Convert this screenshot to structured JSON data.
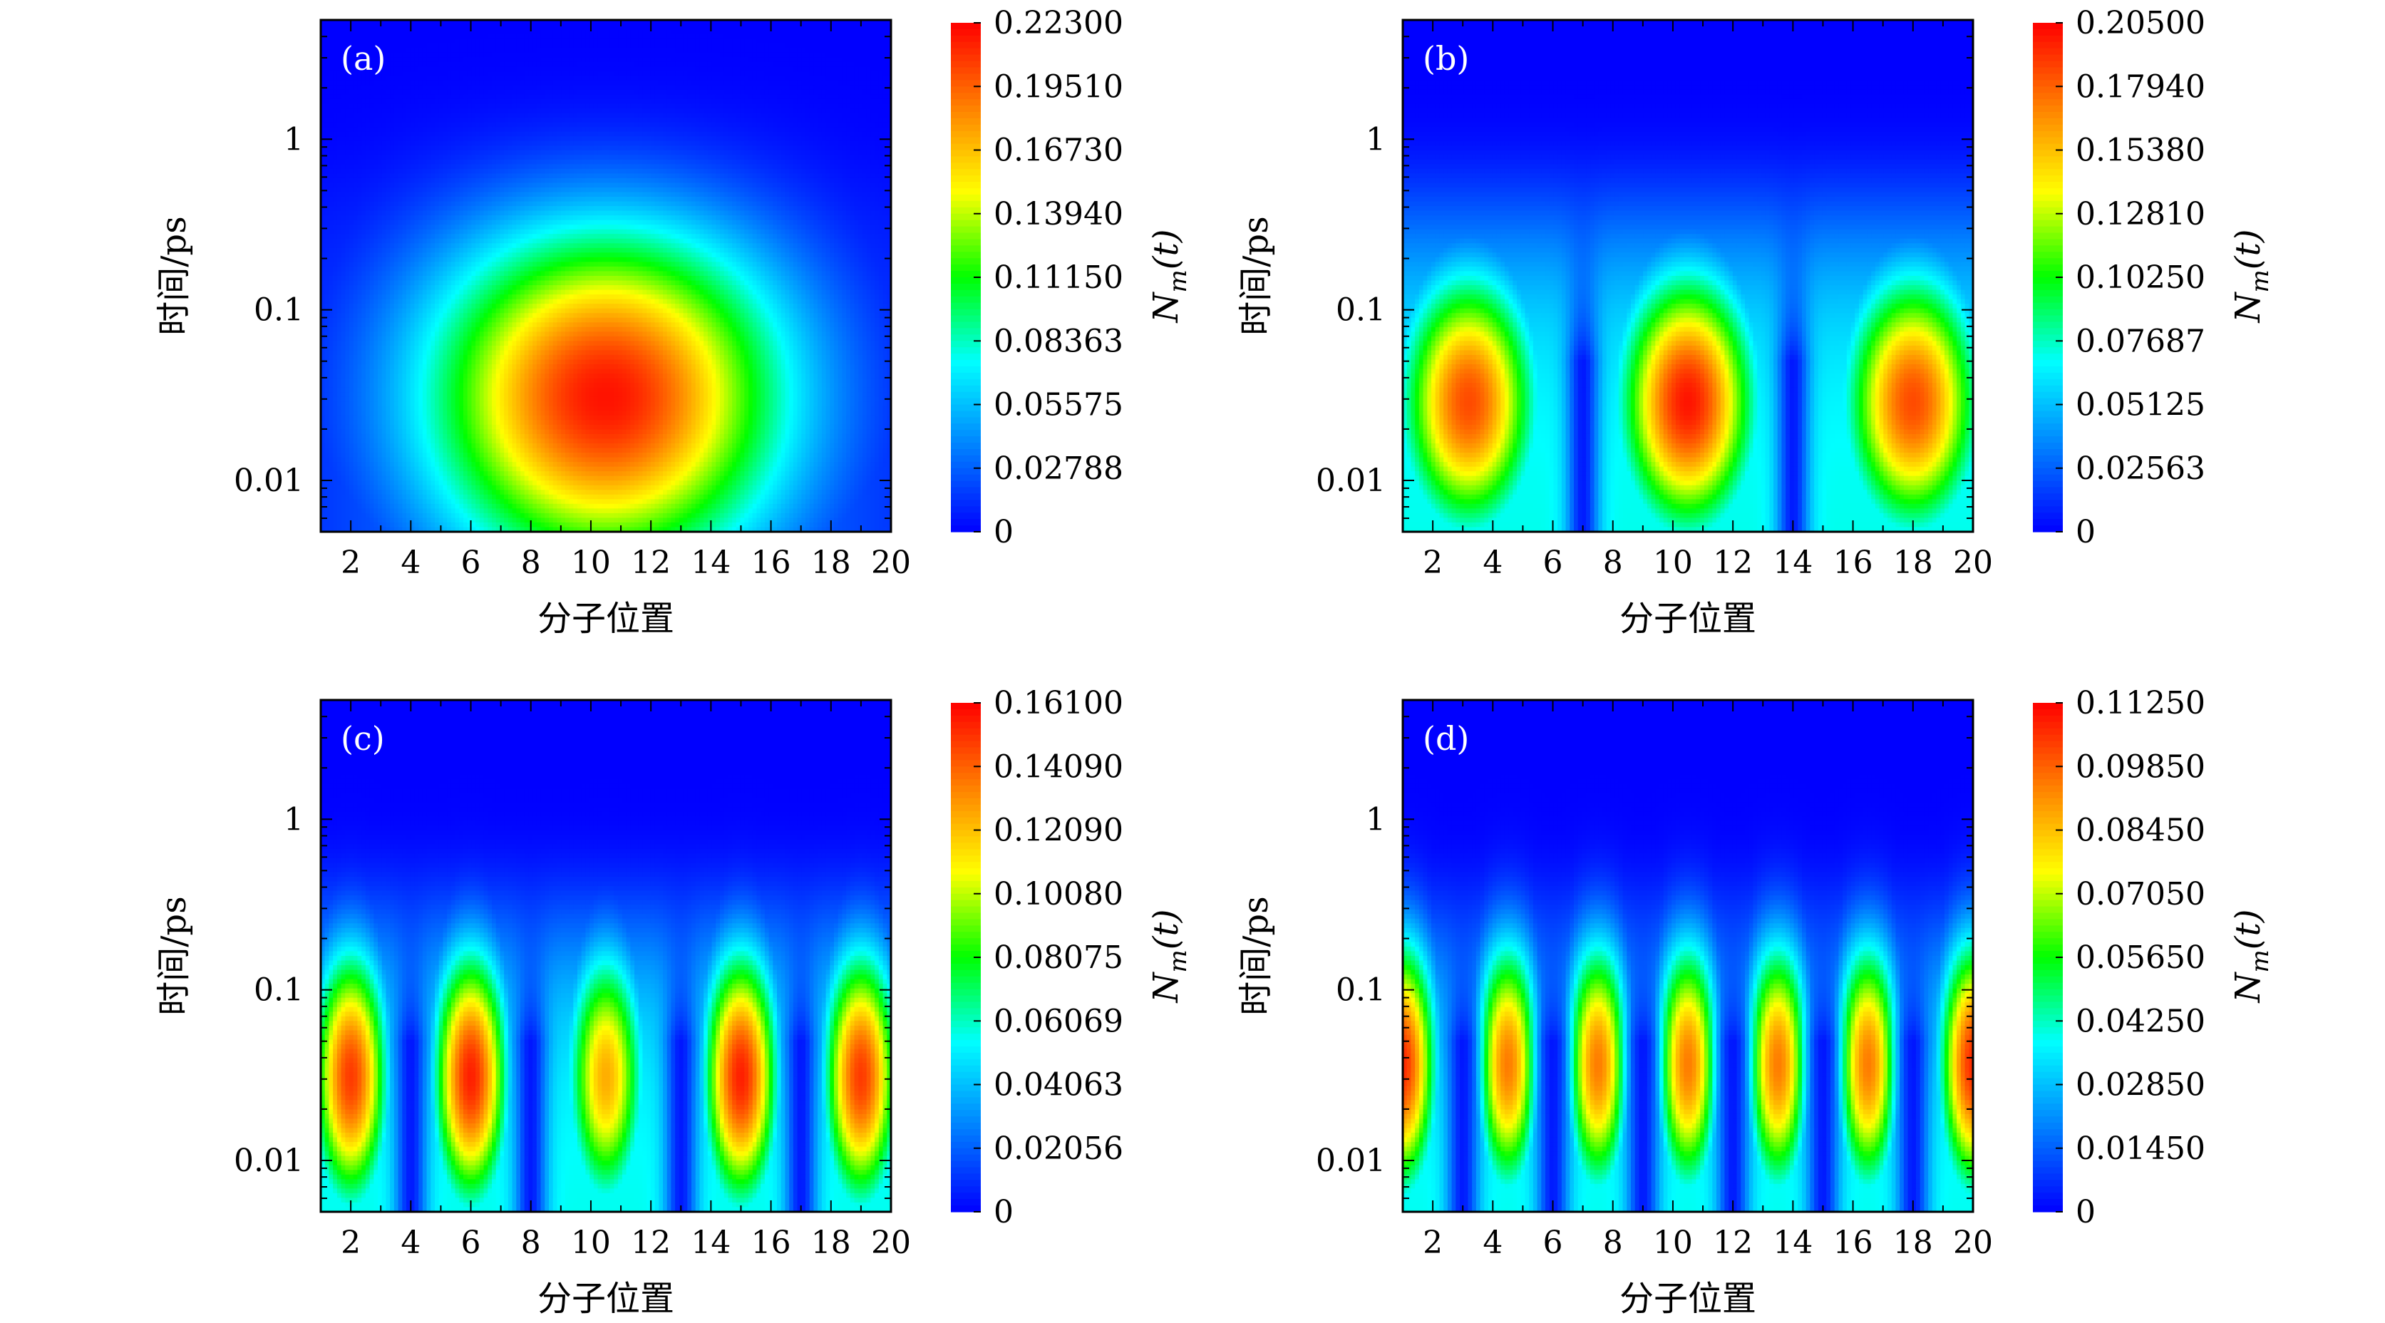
{
  "colors": {
    "colormap": [
      "#0000ff",
      "#0080ff",
      "#00ffff",
      "#00ff00",
      "#ffff00",
      "#ff8000",
      "#ff0000"
    ],
    "axis": "#000000",
    "panel_label": "#ffffff"
  },
  "chart_data": [
    {
      "type": "heatmap",
      "panel_label": "(a)",
      "xlabel": "分子位置",
      "ylabel": "时间/ps",
      "colorbar_label": "N_m(t)",
      "x_ticks": [
        "2",
        "4",
        "6",
        "8",
        "10",
        "12",
        "14",
        "16",
        "18",
        "20"
      ],
      "y_ticks": [
        "0.01",
        "0.1",
        "1"
      ],
      "xlim": [
        1,
        20
      ],
      "ylim": [
        0.005,
        5
      ],
      "y_scale": "log",
      "colorbar_ticks": [
        "0",
        "0.02788",
        "0.05575",
        "0.08363",
        "0.11150",
        "0.13940",
        "0.16730",
        "0.19510",
        "0.22300"
      ],
      "zlim": [
        0,
        0.223
      ],
      "peaks": [
        {
          "x": 10.5,
          "t": 0.033,
          "value": 0.223
        }
      ],
      "background_at_early_time": 0.05,
      "decay_time_ps": 0.6
    },
    {
      "type": "heatmap",
      "panel_label": "(b)",
      "xlabel": "分子位置",
      "ylabel": "时间/ps",
      "colorbar_label": "N_m(t)",
      "x_ticks": [
        "2",
        "4",
        "6",
        "8",
        "10",
        "12",
        "14",
        "16",
        "18",
        "20"
      ],
      "y_ticks": [
        "0.01",
        "0.1",
        "1"
      ],
      "xlim": [
        1,
        20
      ],
      "ylim": [
        0.005,
        5
      ],
      "y_scale": "log",
      "colorbar_ticks": [
        "0",
        "0.02563",
        "0.05125",
        "0.07687",
        "0.10250",
        "0.12810",
        "0.15380",
        "0.17940",
        "0.20500"
      ],
      "zlim": [
        0,
        0.205
      ],
      "peaks": [
        {
          "x": 3.2,
          "t": 0.03,
          "value": 0.19
        },
        {
          "x": 10.5,
          "t": 0.03,
          "value": 0.205
        },
        {
          "x": 18.0,
          "t": 0.03,
          "value": 0.19
        }
      ],
      "minima_x": [
        7,
        14
      ],
      "decay_time_ps": 0.5
    },
    {
      "type": "heatmap",
      "panel_label": "(c)",
      "xlabel": "分子位置",
      "ylabel": "时间/ps",
      "colorbar_label": "N_m(t)",
      "x_ticks": [
        "2",
        "4",
        "6",
        "8",
        "10",
        "12",
        "14",
        "16",
        "18",
        "20"
      ],
      "y_ticks": [
        "0.01",
        "0.1",
        "1"
      ],
      "xlim": [
        1,
        20
      ],
      "ylim": [
        0.005,
        5
      ],
      "y_scale": "log",
      "colorbar_ticks": [
        "0",
        "0.02056",
        "0.04063",
        "0.06069",
        "0.08075",
        "0.10080",
        "0.12090",
        "0.14090",
        "0.16100"
      ],
      "zlim": [
        0,
        0.161
      ],
      "peaks": [
        {
          "x": 2.0,
          "t": 0.033,
          "value": 0.155
        },
        {
          "x": 6.0,
          "t": 0.033,
          "value": 0.161
        },
        {
          "x": 10.5,
          "t": 0.033,
          "value": 0.13
        },
        {
          "x": 15.0,
          "t": 0.033,
          "value": 0.161
        },
        {
          "x": 19.0,
          "t": 0.033,
          "value": 0.155
        }
      ],
      "minima_x": [
        4,
        8,
        13,
        17
      ],
      "decay_time_ps": 0.35
    },
    {
      "type": "heatmap",
      "panel_label": "(d)",
      "xlabel": "分子位置",
      "ylabel": "时间/ps",
      "colorbar_label": "N_m(t)",
      "x_ticks": [
        "2",
        "4",
        "6",
        "8",
        "10",
        "12",
        "14",
        "16",
        "18",
        "20"
      ],
      "y_ticks": [
        "0.01",
        "0.1",
        "1"
      ],
      "xlim": [
        1,
        20
      ],
      "ylim": [
        0.005,
        5
      ],
      "y_scale": "log",
      "colorbar_ticks": [
        "0",
        "0.01450",
        "0.02850",
        "0.04250",
        "0.05650",
        "0.07050",
        "0.08450",
        "0.09850",
        "0.11250"
      ],
      "zlim": [
        0,
        0.1125
      ],
      "peaks": [
        {
          "x": 1.0,
          "t": 0.04,
          "value": 0.1125
        },
        {
          "x": 4.5,
          "t": 0.04,
          "value": 0.1
        },
        {
          "x": 7.5,
          "t": 0.04,
          "value": 0.1
        },
        {
          "x": 10.5,
          "t": 0.04,
          "value": 0.1
        },
        {
          "x": 13.5,
          "t": 0.04,
          "value": 0.1
        },
        {
          "x": 16.5,
          "t": 0.04,
          "value": 0.1
        },
        {
          "x": 20.0,
          "t": 0.04,
          "value": 0.1125
        }
      ],
      "minima_x": [
        3,
        6,
        9,
        12,
        15,
        18
      ],
      "decay_time_ps": 0.3
    }
  ]
}
